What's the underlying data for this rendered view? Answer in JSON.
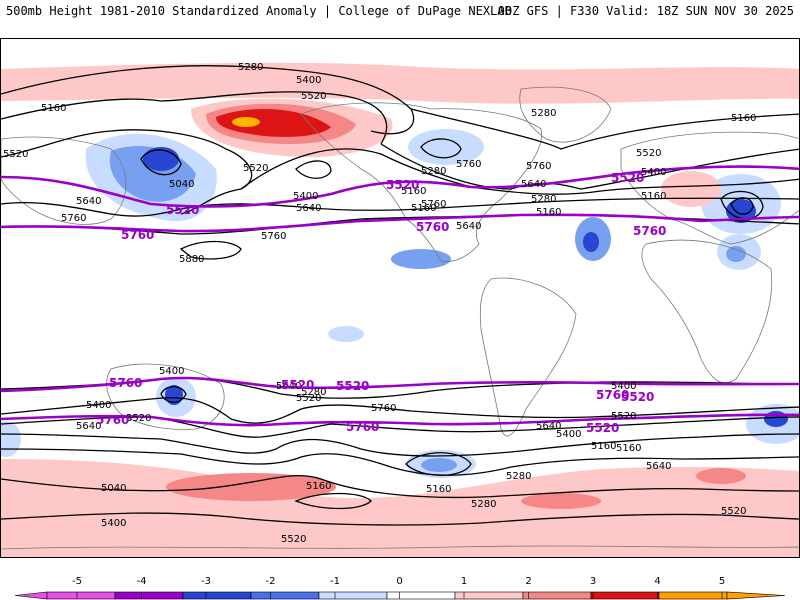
{
  "header": {
    "left": "500mb Height 1981-2010 Standardized Anomaly | College of DuPage NEXLAB",
    "right": "00Z GFS | F330 Valid: 18Z SUN NOV 30 2025"
  },
  "colors": {
    "pos1": "#ffc8c8",
    "pos2": "#f58787",
    "pos3": "#dc1414",
    "pos4": "#ffb400",
    "neg1": "#c8dcff",
    "neg2": "#78a0f0",
    "neg3": "#2846d2",
    "neg4": "#2828a0",
    "contour": "#000000",
    "highlight": "#9a00c8",
    "land": "#777777"
  },
  "map": {
    "black_contour_labels": [
      "5280",
      "5400",
      "5520",
      "5160",
      "5520",
      "5040",
      "5640",
      "5760",
      "5880",
      "5520",
      "5400",
      "5640",
      "5760",
      "5280",
      "5160",
      "5520",
      "5400",
      "5640",
      "5280",
      "5160",
      "5640",
      "5760",
      "5760",
      "5400",
      "5280",
      "5640",
      "5520",
      "5400",
      "5520",
      "5640",
      "5760",
      "5640",
      "5520",
      "5400",
      "5280",
      "5160",
      "5040",
      "5160",
      "5280",
      "5400",
      "5520",
      "5640",
      "5520",
      "5400",
      "5160",
      "5160",
      "5160",
      "5160",
      "5160",
      "5280",
      "5760"
    ],
    "highlight_labels": [
      "5520",
      "5760",
      "5520",
      "5760",
      "5520",
      "5760",
      "5760",
      "5520",
      "5760",
      "5520",
      "5760",
      "5520",
      "5760",
      "5520"
    ]
  },
  "colorbar": {
    "ticks": [
      "-5",
      "-4",
      "-3",
      "-2",
      "-1",
      "0",
      "1",
      "2",
      "3",
      "4",
      "5"
    ],
    "segments": [
      "#e650e6",
      "#9a00c8",
      "#2846d2",
      "#4a6fe6",
      "#c8dcff",
      "#ffffff",
      "#ffc8c8",
      "#f58787",
      "#dc1414",
      "#ffa000"
    ]
  }
}
